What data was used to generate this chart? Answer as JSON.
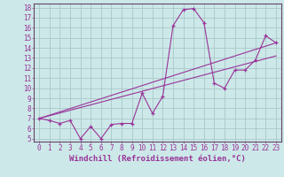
{
  "xlabel": "Windchill (Refroidissement éolien,°C)",
  "bg_color": "#cce8e8",
  "grid_color": "#aac8c8",
  "line_color": "#993399",
  "spine_color": "#664466",
  "xlim": [
    -0.5,
    23.5
  ],
  "ylim": [
    4.7,
    18.4
  ],
  "xticks": [
    0,
    1,
    2,
    3,
    4,
    5,
    6,
    7,
    8,
    9,
    10,
    11,
    12,
    13,
    14,
    15,
    16,
    17,
    18,
    19,
    20,
    21,
    22,
    23
  ],
  "yticks": [
    5,
    6,
    7,
    8,
    9,
    10,
    11,
    12,
    13,
    14,
    15,
    16,
    17,
    18
  ],
  "line1_x": [
    0,
    1,
    2,
    3,
    4,
    5,
    6,
    7,
    8,
    9,
    10,
    11,
    12,
    13,
    14,
    15,
    16,
    17,
    18,
    19,
    20,
    21,
    22,
    23
  ],
  "line1_y": [
    7.0,
    6.8,
    6.5,
    6.8,
    5.0,
    6.2,
    5.0,
    6.4,
    6.5,
    6.5,
    9.5,
    7.5,
    9.2,
    16.2,
    17.8,
    17.9,
    16.5,
    10.5,
    10.0,
    11.8,
    11.8,
    12.8,
    15.2,
    14.5
  ],
  "line2_x": [
    0,
    23
  ],
  "line2_y": [
    7.0,
    13.2
  ],
  "line3_x": [
    0,
    23
  ],
  "line3_y": [
    7.0,
    14.5
  ],
  "fontsize_label": 6.5,
  "fontsize_tick": 5.5
}
